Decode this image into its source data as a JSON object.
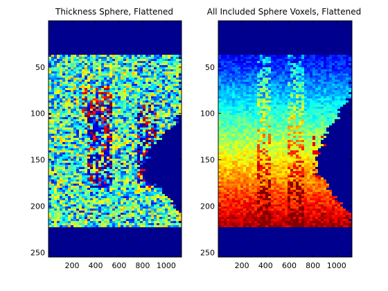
{
  "colors": {
    "background": "#ffffff",
    "axis": "#000000",
    "outside_region": "#00008f"
  },
  "chart_data": [
    {
      "type": "heatmap",
      "title": "Thickness Sphere, Flattened",
      "xlabel": "",
      "ylabel": "",
      "colormap": "jet",
      "xlim": [
        0,
        1130
      ],
      "ylim": [
        255,
        0
      ],
      "y_direction": "reversed",
      "xticks": [
        200,
        400,
        600,
        800,
        1000
      ],
      "yticks": [
        50,
        100,
        150,
        200,
        250
      ],
      "xtick_labels": [
        "200",
        "400",
        "600",
        "800",
        "1000"
      ],
      "ytick_labels": [
        "50",
        "100",
        "150",
        "200",
        "250"
      ],
      "grid": false,
      "legend": "none",
      "data_region": {
        "y_start": 37,
        "y_end": 222,
        "right_boundary_x": [
          [
            37,
            1130
          ],
          [
            90,
            1130
          ],
          [
            100,
            1090
          ],
          [
            110,
            1050
          ],
          [
            122,
            950
          ],
          [
            130,
            910
          ],
          [
            140,
            870
          ],
          [
            150,
            820
          ],
          [
            158,
            780
          ],
          [
            170,
            800
          ],
          [
            180,
            930
          ],
          [
            190,
            1020
          ],
          [
            200,
            1080
          ],
          [
            210,
            1130
          ],
          [
            222,
            1130
          ]
        ]
      },
      "features": {
        "description": "noisy thickness values; dark blue/red clusters near x~400 and x~800 between y~90 and y~180"
      }
    },
    {
      "type": "heatmap",
      "title": "All Included Sphere Voxels, Flattened",
      "xlabel": "",
      "ylabel": "",
      "colormap": "jet",
      "xlim": [
        0,
        1130
      ],
      "ylim": [
        255,
        0
      ],
      "y_direction": "reversed",
      "xticks": [
        200,
        400,
        600,
        800,
        1000
      ],
      "yticks": [
        50,
        100,
        150,
        200,
        250
      ],
      "xtick_labels": [
        "200",
        "400",
        "600",
        "800",
        "1000"
      ],
      "ytick_labels": [
        "50",
        "100",
        "150",
        "200",
        "250"
      ],
      "grid": false,
      "legend": "none",
      "data_region": {
        "y_start": 37,
        "y_end": 222,
        "right_boundary_x": [
          [
            37,
            1130
          ],
          [
            60,
            1130
          ],
          [
            80,
            1100
          ],
          [
            100,
            1000
          ],
          [
            120,
            900
          ],
          [
            135,
            860
          ],
          [
            150,
            820
          ],
          [
            160,
            800
          ],
          [
            175,
            900
          ],
          [
            190,
            1000
          ],
          [
            205,
            1080
          ],
          [
            222,
            1130
          ]
        ]
      },
      "features": {
        "description": "values increase from top (blue) to bottom (red); noisy lighter streaks near x~350 and x~650"
      }
    }
  ]
}
